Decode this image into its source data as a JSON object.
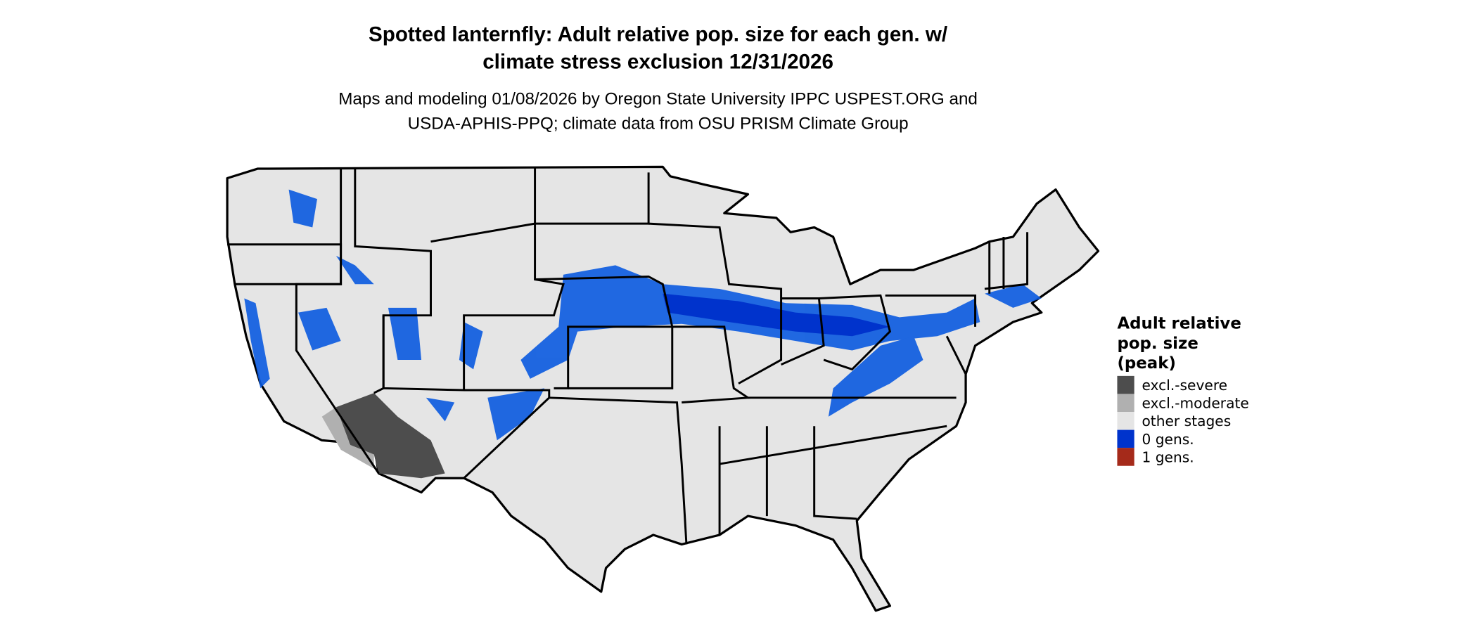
{
  "title": {
    "line1": "Spotted lanternfly: Adult relative pop. size for each gen. w/",
    "line2": "climate stress exclusion 12/31/2026"
  },
  "subtitle": {
    "line1": "Maps and modeling 01/08/2026 by Oregon State University IPPC USPEST.ORG and",
    "line2": "USDA-APHIS-PPQ; climate data from OSU PRISM Climate Group"
  },
  "legend": {
    "title_lines": [
      "Adult relative",
      "pop. size",
      "(peak)"
    ],
    "items": [
      {
        "label": "excl.-severe",
        "color": "#4d4d4d"
      },
      {
        "label": "excl.-moderate",
        "color": "#b0b0b0"
      },
      {
        "label": "other stages",
        "color": "#e5e5e5"
      },
      {
        "label": "0 gens.",
        "color": "#0033cc"
      },
      {
        "label": "1 gens.",
        "color": "#a52a1a"
      }
    ]
  },
  "map": {
    "region": "Contiguous United States",
    "base_color": "#e5e5e5",
    "border_color": "#000000"
  }
}
